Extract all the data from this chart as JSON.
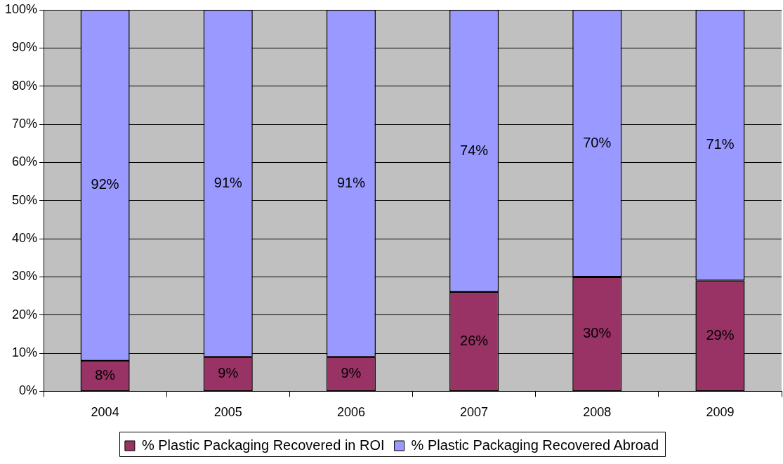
{
  "chart_data": {
    "type": "bar",
    "stacked": true,
    "categories": [
      "2004",
      "2005",
      "2006",
      "2007",
      "2008",
      "2009"
    ],
    "series": [
      {
        "name": "% Plastic Packaging Recovered in ROI",
        "color": "#993366",
        "values": [
          8,
          9,
          9,
          26,
          30,
          29
        ],
        "value_labels": [
          "8%",
          "9%",
          "9%",
          "26%",
          "30%",
          "29%"
        ]
      },
      {
        "name": "% Plastic Packaging Recovered Abroad",
        "color": "#9999ff",
        "values": [
          92,
          91,
          91,
          74,
          70,
          71
        ],
        "value_labels": [
          "92%",
          "91%",
          "91%",
          "74%",
          "70%",
          "71%"
        ]
      }
    ],
    "ylim": [
      0,
      100
    ],
    "yticks": [
      {
        "value": 0,
        "label": "0%"
      },
      {
        "value": 10,
        "label": "10%"
      },
      {
        "value": 20,
        "label": "20%"
      },
      {
        "value": 30,
        "label": "30%"
      },
      {
        "value": 40,
        "label": "40%"
      },
      {
        "value": 50,
        "label": "50%"
      },
      {
        "value": 60,
        "label": "60%"
      },
      {
        "value": 70,
        "label": "70%"
      },
      {
        "value": 80,
        "label": "80%"
      },
      {
        "value": 90,
        "label": "90%"
      },
      {
        "value": 100,
        "label": "100%"
      }
    ],
    "grid": "y",
    "legend": "bottom"
  }
}
